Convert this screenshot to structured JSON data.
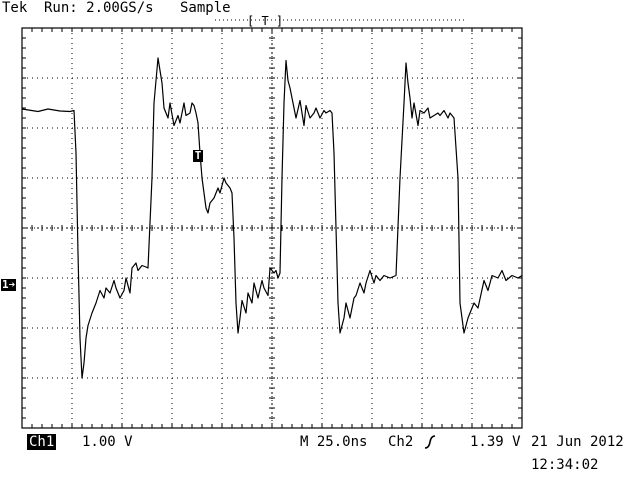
{
  "header": {
    "brand": "Tek",
    "run_status": "Run: 2.00GS/s",
    "acquisition_mode": "Sample",
    "trigger_position_label": "[ T ]"
  },
  "markers": {
    "channel1": "1➔",
    "trigger": "T"
  },
  "status_bar": {
    "channel_badge": "Ch1",
    "channel_scale": "1.00 V",
    "timebase": "M 25.0ns",
    "trigger_source": "Ch2",
    "trigger_slope_icon": "rising-edge-icon",
    "trigger_level": "1.39 V",
    "date": "21 Jun 2012",
    "time": "12:34:02"
  },
  "chart_data": {
    "type": "line",
    "x_unit": "ns",
    "y_unit": "V",
    "x_per_division": 25,
    "y_per_division": 1.0,
    "x_divisions": 10,
    "y_divisions": 8,
    "xlim": [
      -125,
      125
    ],
    "ylim": [
      -4,
      4
    ],
    "grid": true,
    "series": [
      {
        "x": [
          -125,
          -117,
          -112,
          -106,
          -101,
          -99,
          -98,
          -97,
          -96,
          -95,
          -94,
          -93,
          -92,
          -90,
          -88,
          -86,
          -84,
          -83,
          -81,
          -79,
          -78,
          -76,
          -74,
          -73,
          -71,
          -70,
          -69,
          -68,
          -67,
          -66,
          -65,
          -63,
          -62,
          -60,
          -59,
          -57,
          -55,
          -54,
          -52,
          -51,
          -49,
          -47,
          -46,
          -44,
          -43,
          -41,
          -40,
          -39,
          -38,
          -37,
          -36,
          -35,
          -34,
          -33,
          -32,
          -31,
          -29,
          -27,
          -26,
          -24,
          -23,
          -21,
          -20,
          -19,
          -18,
          -17,
          -16,
          -15,
          -13,
          -12,
          -10,
          -9,
          -7,
          -5,
          -4,
          -2,
          -1,
          1,
          2,
          3,
          4,
          5,
          6,
          7,
          8,
          9,
          11,
          12,
          14,
          16,
          17,
          19,
          21,
          22,
          24,
          26,
          27,
          29,
          30,
          31,
          32,
          33,
          34,
          36,
          37,
          39,
          41,
          42,
          44,
          46,
          47,
          49,
          51,
          52,
          54,
          56,
          59,
          62,
          64,
          66,
          67,
          68,
          69,
          70,
          71,
          73,
          74,
          76,
          78,
          79,
          81,
          83,
          84,
          86,
          88,
          89,
          91,
          93,
          94,
          96,
          98,
          101,
          103,
          106,
          108,
          110,
          113,
          115,
          117,
          120,
          123,
          125
        ],
        "y": [
          2.38,
          2.33,
          2.38,
          2.34,
          2.33,
          2.35,
          1.5,
          -0.5,
          -2.2,
          -3.0,
          -2.7,
          -2.2,
          -1.95,
          -1.7,
          -1.5,
          -1.25,
          -1.4,
          -1.2,
          -1.3,
          -1.05,
          -1.2,
          -1.4,
          -1.25,
          -1.0,
          -1.3,
          -0.8,
          -0.75,
          -0.7,
          -0.85,
          -0.8,
          -0.75,
          -0.78,
          -0.8,
          1.0,
          2.5,
          3.4,
          2.9,
          2.4,
          2.2,
          2.5,
          2.05,
          2.25,
          2.1,
          2.5,
          2.25,
          2.3,
          2.5,
          2.45,
          2.3,
          2.1,
          1.5,
          1.0,
          0.7,
          0.4,
          0.3,
          0.5,
          0.6,
          0.8,
          0.7,
          1.0,
          0.9,
          0.8,
          0.7,
          -0.2,
          -1.5,
          -2.1,
          -1.8,
          -1.45,
          -1.7,
          -1.3,
          -1.5,
          -1.1,
          -1.4,
          -1.05,
          -1.2,
          -1.35,
          -0.8,
          -0.9,
          -0.85,
          -1.0,
          -0.9,
          1.0,
          2.5,
          3.35,
          2.95,
          2.8,
          2.4,
          2.2,
          2.55,
          2.05,
          2.45,
          2.2,
          2.3,
          2.4,
          2.2,
          2.35,
          2.3,
          2.35,
          2.3,
          1.5,
          0.0,
          -1.5,
          -2.1,
          -1.8,
          -1.5,
          -1.8,
          -1.4,
          -1.35,
          -1.1,
          -1.3,
          -1.1,
          -0.85,
          -1.1,
          -0.95,
          -1.05,
          -0.95,
          -1.0,
          -0.95,
          1.0,
          2.5,
          3.3,
          2.9,
          2.6,
          2.2,
          2.5,
          2.05,
          2.35,
          2.3,
          2.4,
          2.2,
          2.25,
          2.3,
          2.25,
          2.35,
          2.2,
          2.3,
          2.2,
          1.0,
          -1.5,
          -2.1,
          -1.8,
          -1.5,
          -1.6,
          -1.05,
          -1.25,
          -0.95,
          -1.0,
          -0.85,
          -1.05,
          -0.95,
          -1.0,
          -0.95
        ]
      }
    ]
  }
}
